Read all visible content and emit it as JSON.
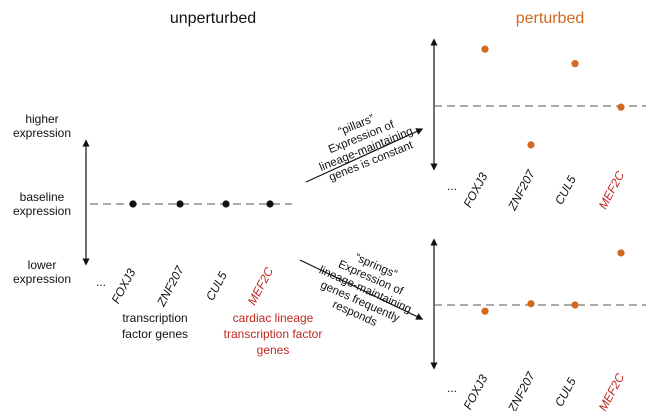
{
  "titles": {
    "left": "unperturbed",
    "right": "perturbed"
  },
  "y_axis": {
    "higher": [
      "higher",
      "expression"
    ],
    "baseline": [
      "baseline",
      "expression"
    ],
    "lower": [
      "lower",
      "expression"
    ]
  },
  "ellipsis": "...",
  "genes": [
    {
      "name": "FOXJ3",
      "group": "transcription"
    },
    {
      "name": "ZNF207",
      "group": "transcription"
    },
    {
      "name": "CUL5",
      "group": "transcription"
    },
    {
      "name": "MEF2C",
      "group": "cardiac"
    }
  ],
  "groups": {
    "transcription": [
      "transcription",
      "factor genes"
    ],
    "cardiac": [
      "cardiac lineage",
      "transcription factor",
      "genes"
    ]
  },
  "models": {
    "pillars": {
      "quote": "“pillars”",
      "lines": [
        "Expression of",
        "lineage-maintaining",
        "genes is constant"
      ]
    },
    "springs": {
      "quote": "“springs”",
      "lines": [
        "Expression of",
        "lineage-maintaining",
        "genes frequently",
        "responds"
      ]
    }
  },
  "colors": {
    "orange": "#d2691e",
    "red": "#c0271f",
    "black": "#111111",
    "dash": "#555555"
  },
  "chart_data": [
    {
      "type": "scatter",
      "name_key": "unperturbed",
      "categories": [
        "FOXJ3",
        "ZNF207",
        "CUL5",
        "MEF2C"
      ],
      "values": [
        0,
        0,
        0,
        0
      ],
      "ylim": [
        -1,
        1
      ]
    },
    {
      "type": "scatter",
      "name_key": "perturbed-pillars",
      "categories": [
        "FOXJ3",
        "ZNF207",
        "CUL5",
        "MEF2C"
      ],
      "values": [
        0.98,
        -0.67,
        0.73,
        -0.02
      ],
      "ylim": [
        -1,
        1
      ]
    },
    {
      "type": "scatter",
      "name_key": "perturbed-springs",
      "categories": [
        "FOXJ3",
        "ZNF207",
        "CUL5",
        "MEF2C"
      ],
      "values": [
        -0.1,
        0.02,
        0.0,
        0.84
      ],
      "ylim": [
        -1,
        1
      ]
    }
  ]
}
